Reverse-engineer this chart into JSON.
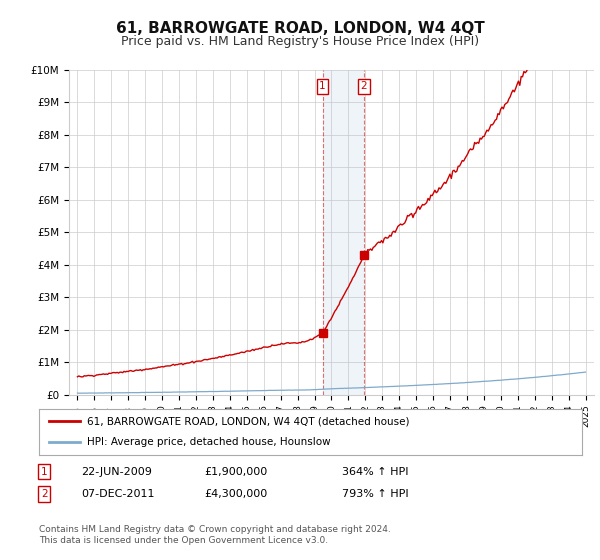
{
  "title": "61, BARROWGATE ROAD, LONDON, W4 4QT",
  "subtitle": "Price paid vs. HM Land Registry's House Price Index (HPI)",
  "title_fontsize": 11,
  "subtitle_fontsize": 9,
  "ylim": [
    0,
    10000000
  ],
  "yticks": [
    0,
    1000000,
    2000000,
    3000000,
    4000000,
    5000000,
    6000000,
    7000000,
    8000000,
    9000000,
    10000000
  ],
  "ytick_labels": [
    "£0",
    "£1M",
    "£2M",
    "£3M",
    "£4M",
    "£5M",
    "£6M",
    "£7M",
    "£8M",
    "£9M",
    "£10M"
  ],
  "hpi_color": "#7faacc",
  "property_color": "#cc0000",
  "transaction1_date": 2009.47,
  "transaction1_price": 1900000,
  "transaction2_date": 2011.92,
  "transaction2_price": 4300000,
  "shade_x1": 2009.47,
  "shade_x2": 2011.92,
  "legend_line1": "61, BARROWGATE ROAD, LONDON, W4 4QT (detached house)",
  "legend_line2": "HPI: Average price, detached house, Hounslow",
  "annotation1_date": "22-JUN-2009",
  "annotation1_price": "£1,900,000",
  "annotation1_hpi": "364% ↑ HPI",
  "annotation2_date": "07-DEC-2011",
  "annotation2_price": "£4,300,000",
  "annotation2_hpi": "793% ↑ HPI",
  "footer": "Contains HM Land Registry data © Crown copyright and database right 2024.\nThis data is licensed under the Open Government Licence v3.0.",
  "background_color": "#ffffff",
  "grid_color": "#cccccc",
  "xlim_left": 1994.5,
  "xlim_right": 2025.5
}
